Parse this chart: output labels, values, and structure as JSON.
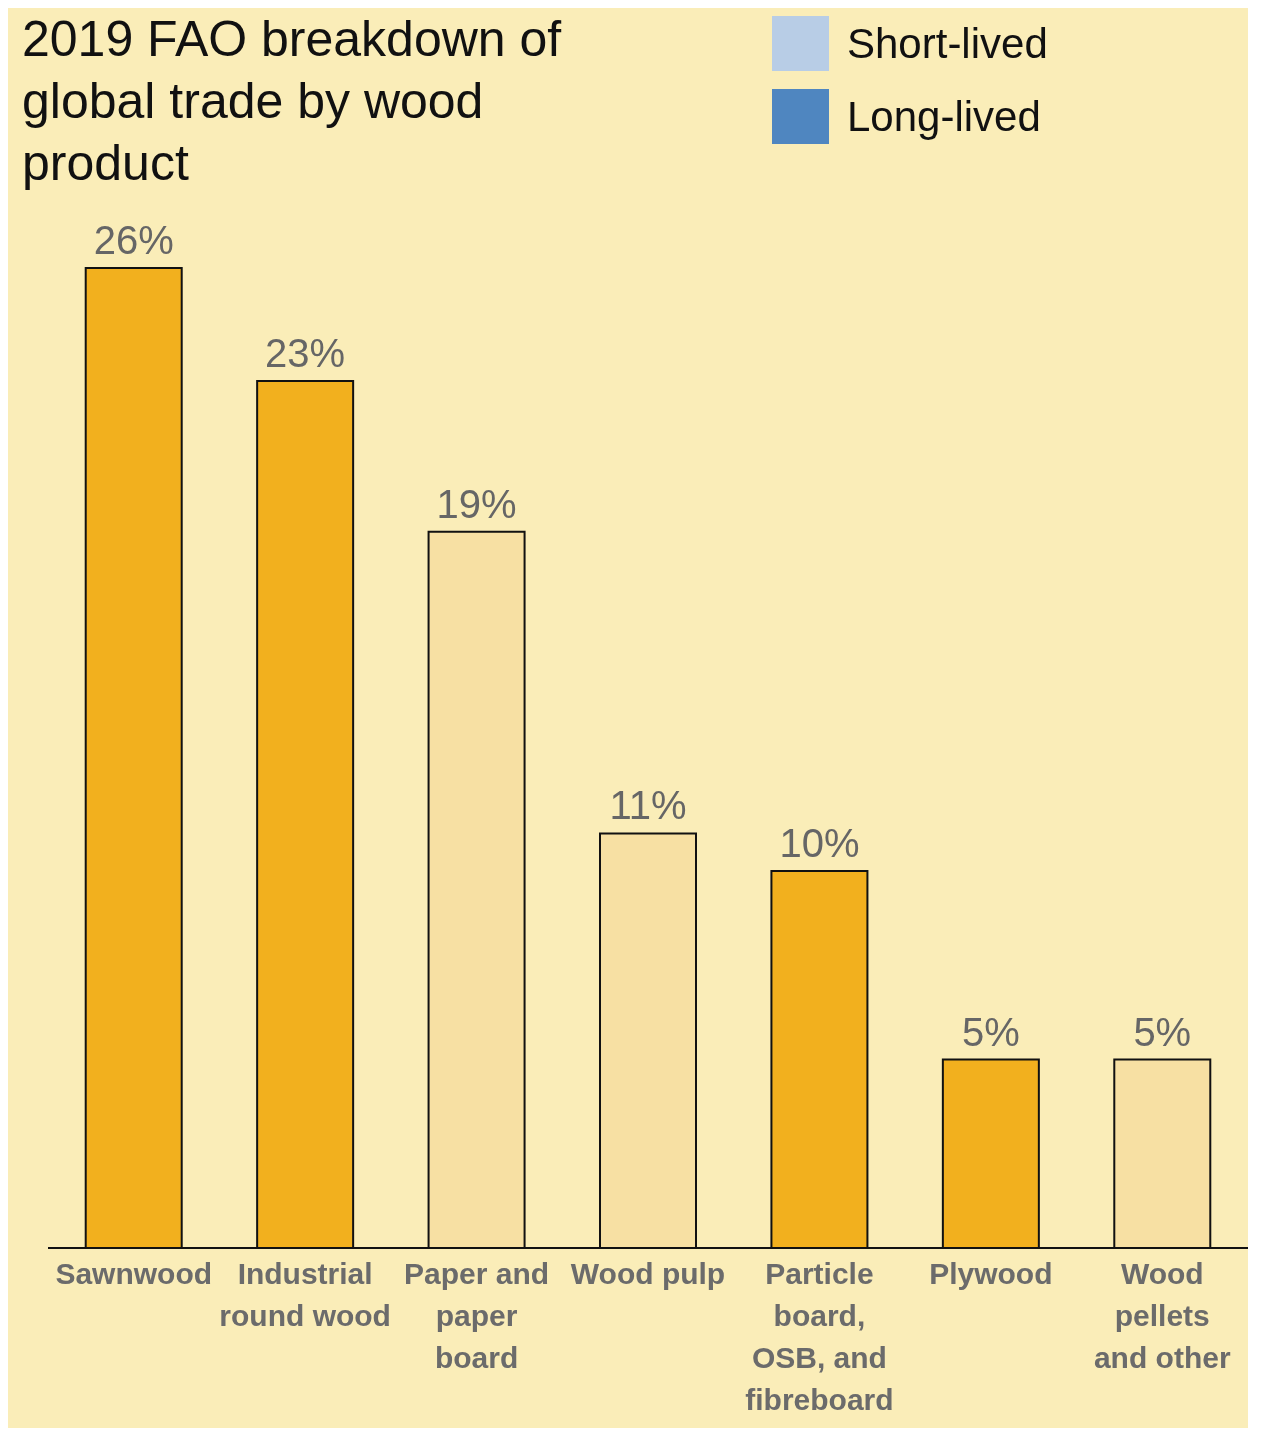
{
  "chart_data": {
    "type": "bar",
    "title": "2019 FAO breakdown of global trade by wood product",
    "categories": [
      "Sawnwood",
      "Industrial round wood",
      "Paper and paper board",
      "Wood pulp",
      "Particle board, OSB, and fibreboard",
      "Plywood",
      "Wood pellets and other"
    ],
    "values": [
      26,
      23,
      19,
      11,
      10,
      5,
      5
    ],
    "colors": [
      "#f2b01e",
      "#f2b01e",
      "#f7e0a3",
      "#f7e0a3",
      "#f2b01e",
      "#f2b01e",
      "#f7e0a3"
    ],
    "value_labels": [
      "26%",
      "23%",
      "19%",
      "11%",
      "10%",
      "5%",
      "5%"
    ],
    "annotations": [
      "Short-lived",
      "Long-lived"
    ]
  }
}
